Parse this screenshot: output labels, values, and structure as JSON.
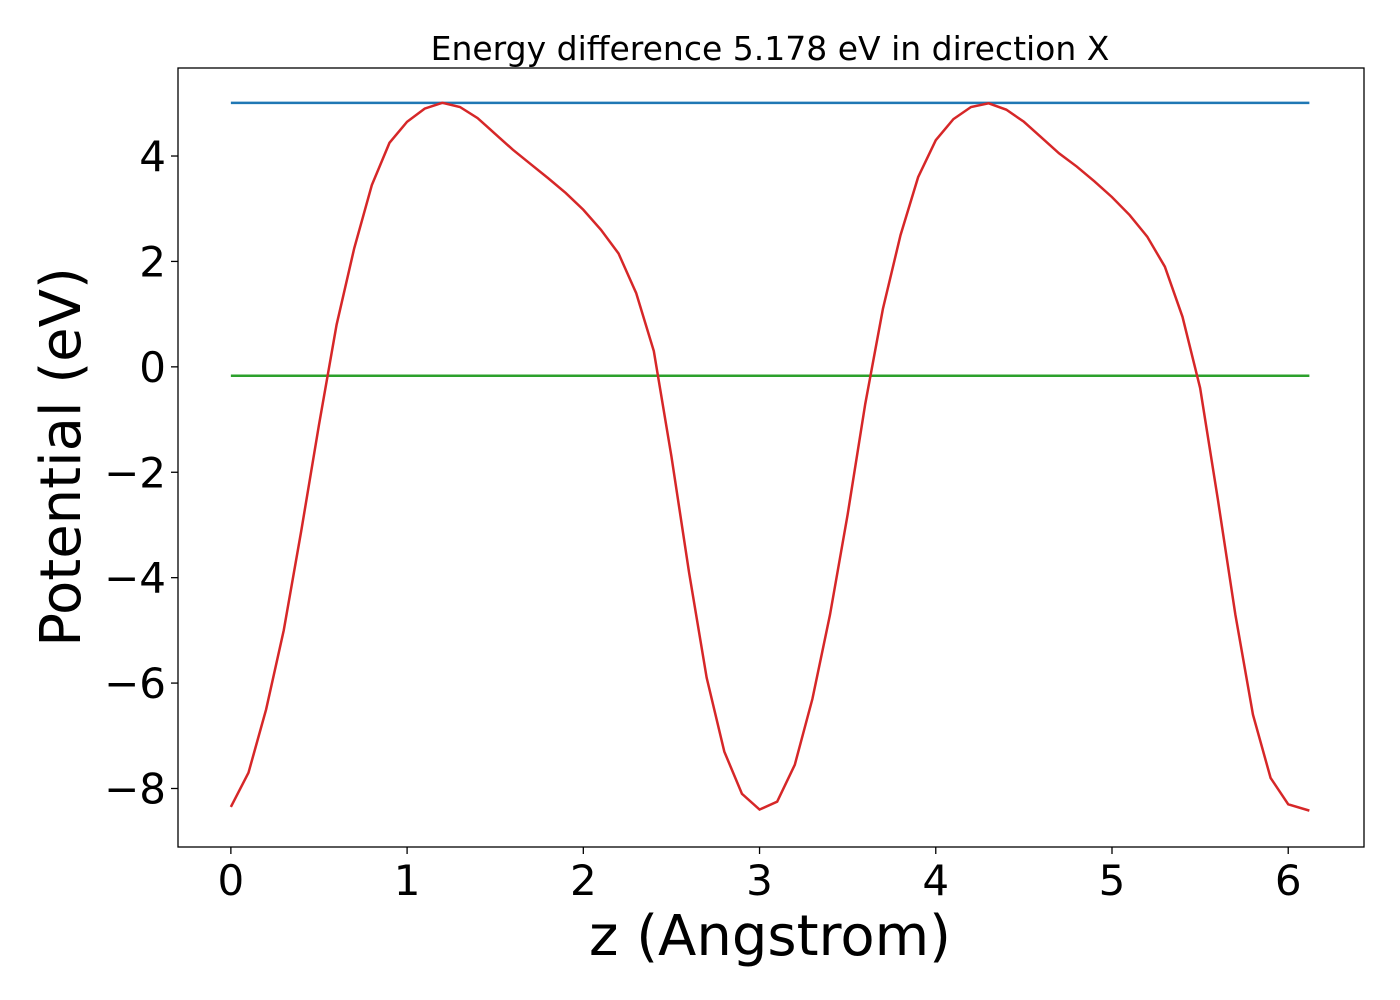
{
  "chart_data": {
    "type": "line",
    "title": "Energy difference 5.178 eV in direction X",
    "xlabel": "z (Angstrom)",
    "ylabel": "Potential (eV)",
    "xlim": [
      -0.3,
      6.43
    ],
    "ylim": [
      -9.11,
      5.67
    ],
    "xticks": [
      0,
      1,
      2,
      3,
      4,
      5,
      6
    ],
    "yticks": [
      {
        "value": -8,
        "label": "−8"
      },
      {
        "value": -6,
        "label": "−6"
      },
      {
        "value": -4,
        "label": "−4"
      },
      {
        "value": -2,
        "label": "−2"
      },
      0,
      2,
      4
    ],
    "grid": false,
    "series": [
      {
        "color": "#1f77b4",
        "x": [
          0,
          6.12
        ],
        "values": [
          5.008,
          5.008
        ]
      },
      {
        "color": "#2ca02c",
        "x": [
          0,
          6.12
        ],
        "values": [
          -0.17,
          -0.17
        ]
      },
      {
        "color": "#d62728",
        "x": [
          0,
          0.1,
          0.2,
          0.3,
          0.4,
          0.5,
          0.6,
          0.7,
          0.8,
          0.9,
          1.0,
          1.1,
          1.2,
          1.3,
          1.4,
          1.5,
          1.6,
          1.7,
          1.8,
          1.9,
          2.0,
          2.1,
          2.2,
          2.3,
          2.4,
          2.5,
          2.6,
          2.7,
          2.8,
          2.9,
          3.0,
          3.1,
          3.2,
          3.3,
          3.4,
          3.5,
          3.6,
          3.7,
          3.8,
          3.9,
          4.0,
          4.1,
          4.2,
          4.3,
          4.4,
          4.5,
          4.6,
          4.7,
          4.8,
          4.9,
          5.0,
          5.1,
          5.2,
          5.3,
          5.4,
          5.5,
          5.6,
          5.7,
          5.8,
          5.9,
          6.0,
          6.12
        ],
        "values": [
          -8.35,
          -7.7,
          -6.5,
          -5.0,
          -3.1,
          -1.1,
          0.8,
          2.25,
          3.45,
          4.25,
          4.65,
          4.9,
          5.01,
          4.93,
          4.72,
          4.42,
          4.12,
          3.85,
          3.58,
          3.3,
          2.98,
          2.6,
          2.15,
          1.4,
          0.3,
          -1.7,
          -3.9,
          -5.9,
          -7.3,
          -8.1,
          -8.4,
          -8.25,
          -7.55,
          -6.3,
          -4.7,
          -2.8,
          -0.7,
          1.1,
          2.5,
          3.6,
          4.3,
          4.7,
          4.93,
          5.0,
          4.88,
          4.65,
          4.35,
          4.05,
          3.8,
          3.52,
          3.22,
          2.88,
          2.47,
          1.9,
          0.95,
          -0.4,
          -2.5,
          -4.7,
          -6.6,
          -7.8,
          -8.3,
          -8.42
        ]
      }
    ]
  }
}
